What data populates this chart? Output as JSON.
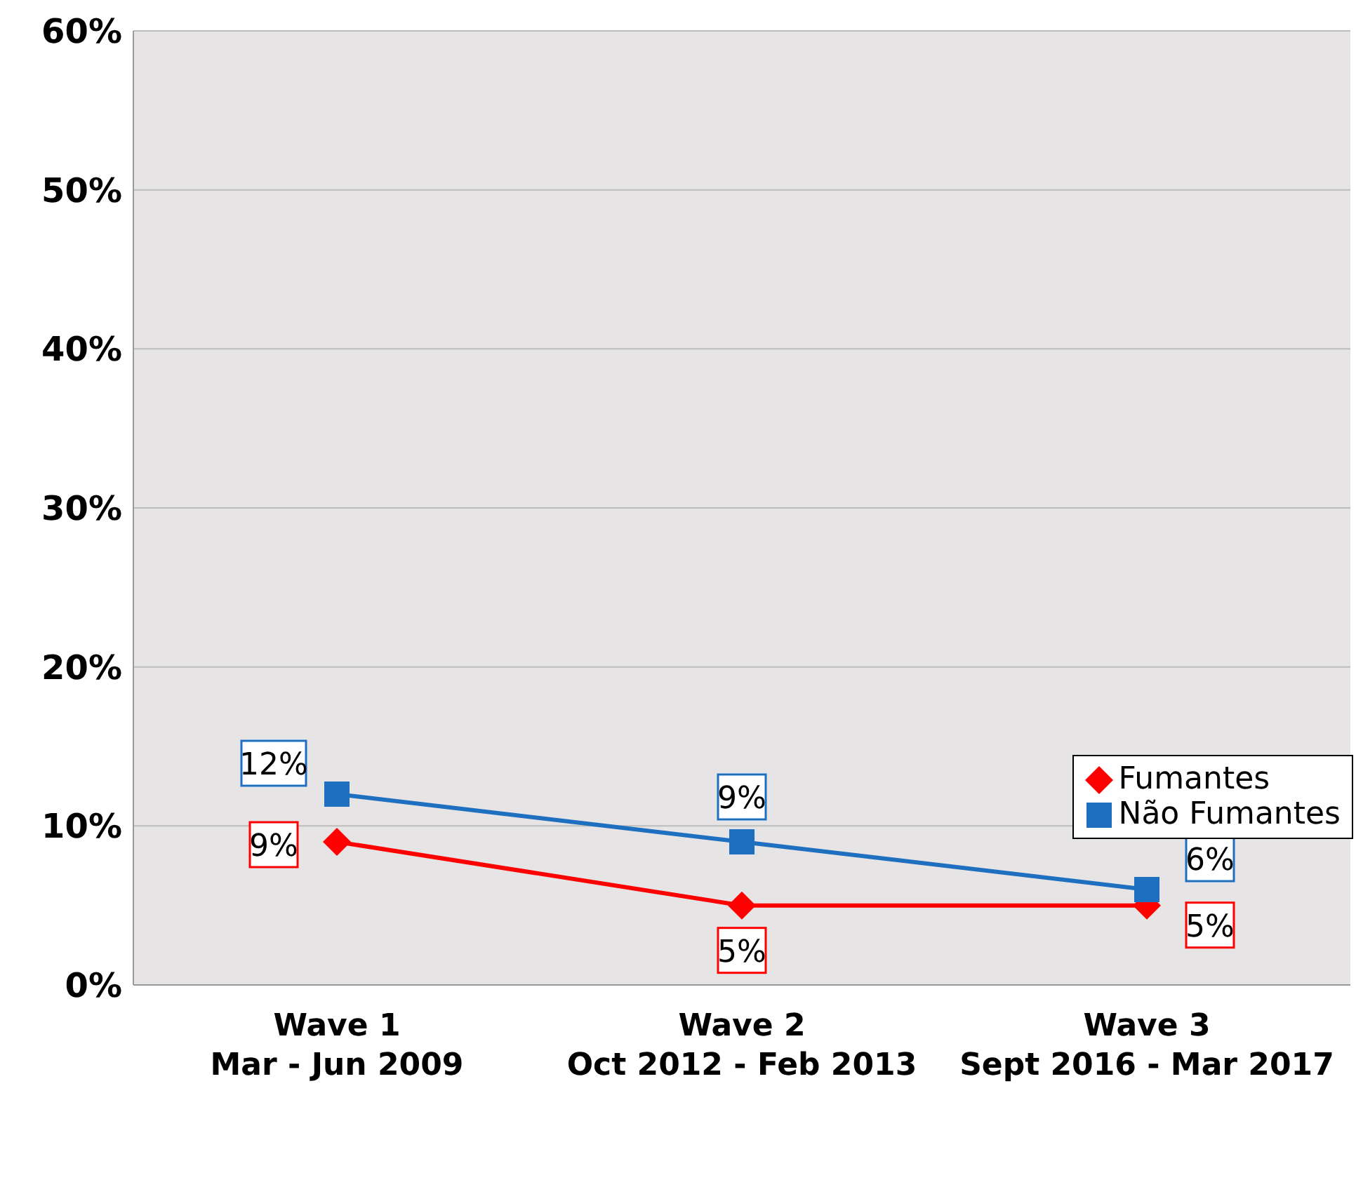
{
  "chart_data": {
    "type": "line",
    "categories": [
      "Wave 1\nMar - Jun 2009",
      "Wave 2\nOct 2012 - Feb 2013",
      "Wave 3\nSept 2016 - Mar 2017"
    ],
    "series": [
      {
        "name": "Fumantes",
        "color": "#ff0000",
        "marker": "diamond",
        "values": [
          9,
          5,
          5
        ],
        "value_labels": [
          "9%",
          "5%",
          "5%"
        ]
      },
      {
        "name": "Não Fumantes",
        "color": "#1f6fc0",
        "marker": "square",
        "values": [
          12,
          9,
          6
        ],
        "value_labels": [
          "12%",
          "9%",
          "6%"
        ]
      }
    ],
    "ylim": [
      0,
      60
    ],
    "yticks": [
      {
        "value": 0,
        "label": "0%"
      },
      {
        "value": 10,
        "label": "10%"
      },
      {
        "value": 20,
        "label": "20%"
      },
      {
        "value": 30,
        "label": "30%"
      },
      {
        "value": 40,
        "label": "40%"
      },
      {
        "value": 50,
        "label": "50%"
      },
      {
        "value": 60,
        "label": "60%"
      }
    ],
    "grid": "y",
    "legend": "right"
  }
}
